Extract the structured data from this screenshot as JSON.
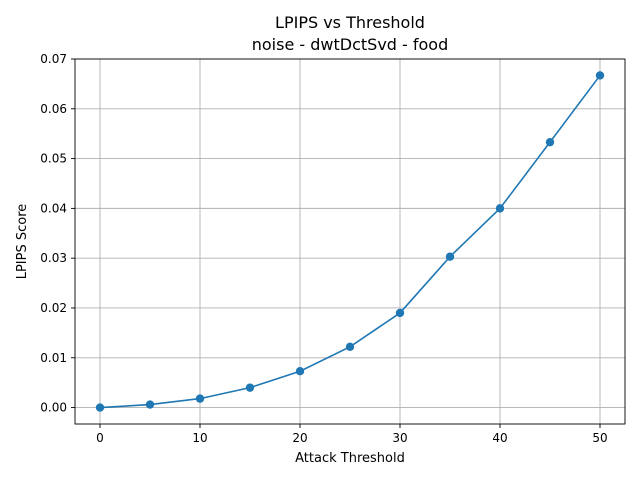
{
  "chart_data": {
    "type": "line",
    "title": "LPIPS vs Threshold",
    "subtitle": "noise - dwtDctSvd - food",
    "xlabel": "Attack Threshold",
    "ylabel": "LPIPS Score",
    "x": [
      0,
      5,
      10,
      15,
      20,
      25,
      30,
      35,
      40,
      45,
      50
    ],
    "series": [
      {
        "values": [
          0.0,
          0.0006,
          0.0018,
          0.004,
          0.0073,
          0.0122,
          0.019,
          0.0303,
          0.04,
          0.0533,
          0.0667
        ],
        "color": "#1f77b4",
        "marker": "circle"
      }
    ],
    "xlim": [
      -2.5,
      52.5
    ],
    "ylim": [
      -0.0033,
      0.07
    ],
    "xticks": [
      0,
      10,
      20,
      30,
      40,
      50
    ],
    "xtick_labels": [
      "0",
      "10",
      "20",
      "30",
      "40",
      "50"
    ],
    "yticks": [
      0.0,
      0.01,
      0.02,
      0.03,
      0.04,
      0.05,
      0.06,
      0.07
    ],
    "ytick_labels": [
      "0.00",
      "0.01",
      "0.02",
      "0.03",
      "0.04",
      "0.05",
      "0.06",
      "0.07"
    ],
    "grid": true,
    "legend": "none"
  }
}
